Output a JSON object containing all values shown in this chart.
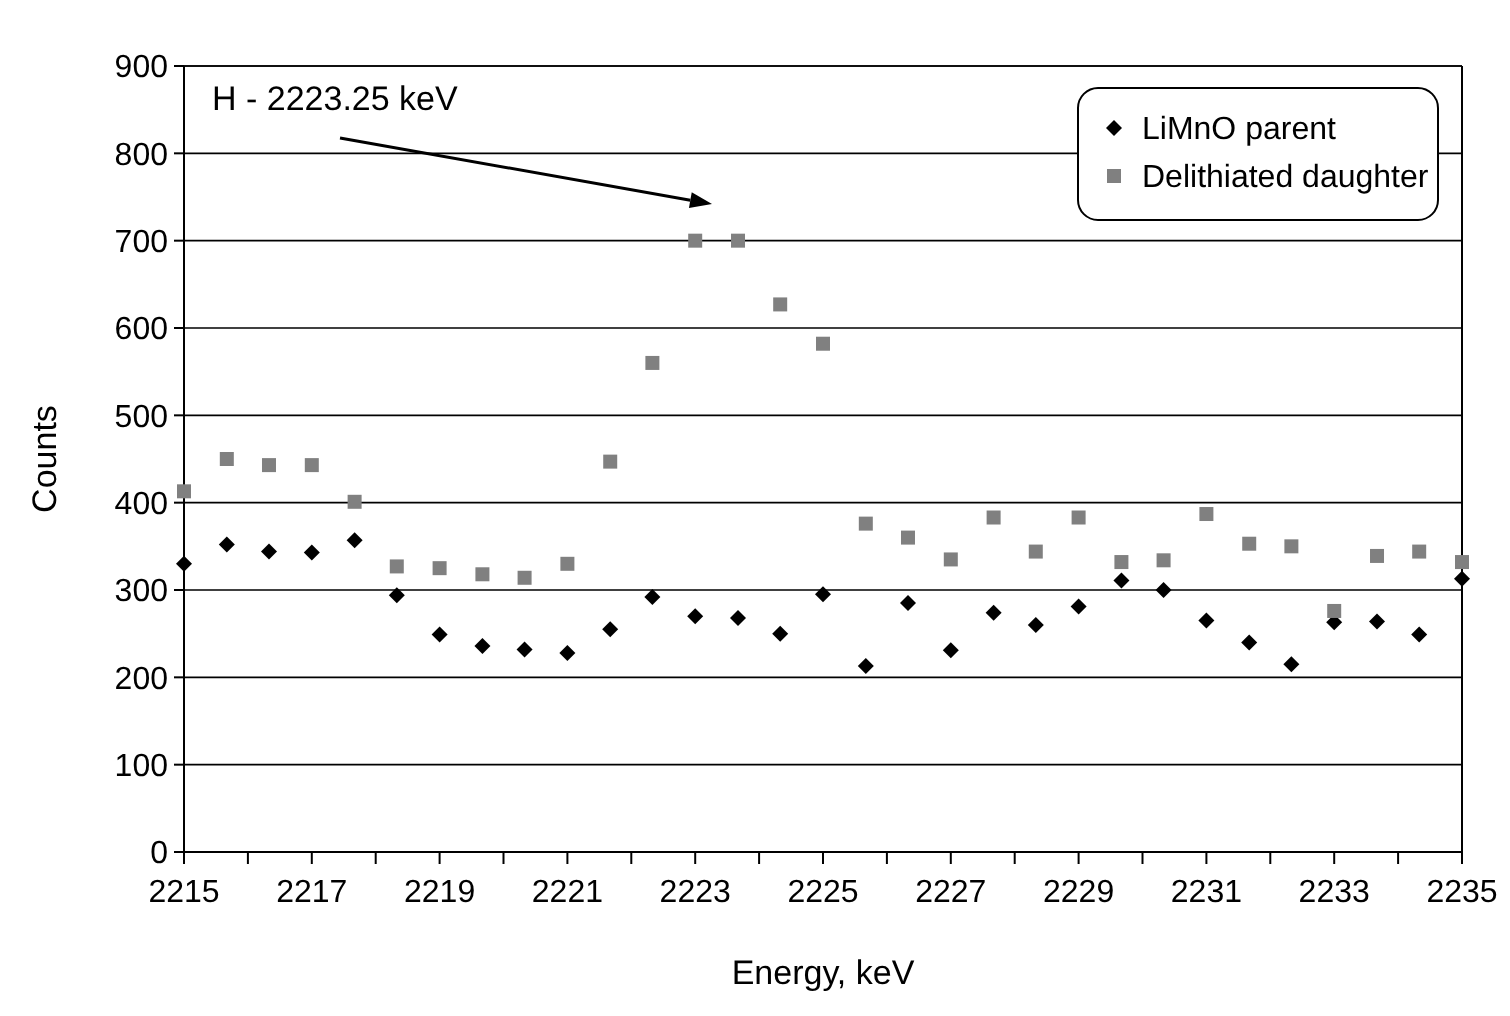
{
  "chart_data": {
    "type": "scatter",
    "xlabel": "Energy, keV",
    "ylabel": "Counts",
    "x": [
      2215,
      2215.67,
      2216.33,
      2217,
      2217.67,
      2218.33,
      2219,
      2219.67,
      2220.33,
      2221,
      2221.67,
      2222.33,
      2223,
      2223.67,
      2224.33,
      2225,
      2225.67,
      2226.33,
      2227,
      2227.67,
      2228.33,
      2229,
      2229.67,
      2230.33,
      2231,
      2231.67,
      2232.33,
      2233,
      2233.67,
      2234.33,
      2235
    ],
    "series": [
      {
        "name": "LiMnO parent",
        "color": "#000000",
        "marker": "diamond",
        "values": [
          330,
          352,
          344,
          343,
          357,
          294,
          249,
          236,
          232,
          228,
          255,
          292,
          270,
          268,
          250,
          295,
          213,
          285,
          231,
          274,
          260,
          281,
          311,
          300,
          265,
          240,
          215,
          263,
          264,
          249,
          313
        ]
      },
      {
        "name": "Delithiated daughter",
        "color": "#808080",
        "marker": "square",
        "values": [
          413,
          450,
          443,
          443,
          401,
          327,
          325,
          318,
          314,
          330,
          447,
          560,
          700,
          700,
          627,
          582,
          376,
          360,
          335,
          383,
          344,
          383,
          332,
          334,
          387,
          353,
          350,
          276,
          339,
          344,
          332
        ]
      }
    ],
    "xlim": [
      2215,
      2235
    ],
    "xticks": [
      2215,
      {
        "value": 2216,
        "label": null
      },
      2217,
      {
        "value": 2218,
        "label": null
      },
      2219,
      {
        "value": 2220,
        "label": null
      },
      2221,
      {
        "value": 2222,
        "label": null
      },
      2223,
      {
        "value": 2224,
        "label": null
      },
      2225,
      {
        "value": 2226,
        "label": null
      },
      2227,
      {
        "value": 2228,
        "label": null
      },
      2229,
      {
        "value": 2230,
        "label": null
      },
      2231,
      {
        "value": 2232,
        "label": null
      },
      2233,
      {
        "value": 2234,
        "label": null
      },
      2235
    ],
    "ylim": [
      0,
      900
    ],
    "yticks": [
      0,
      100,
      200,
      300,
      400,
      500,
      600,
      700,
      800,
      900
    ],
    "grid": "y",
    "legend": "top right",
    "annotations": [
      "H - 2223.25 keV"
    ]
  }
}
